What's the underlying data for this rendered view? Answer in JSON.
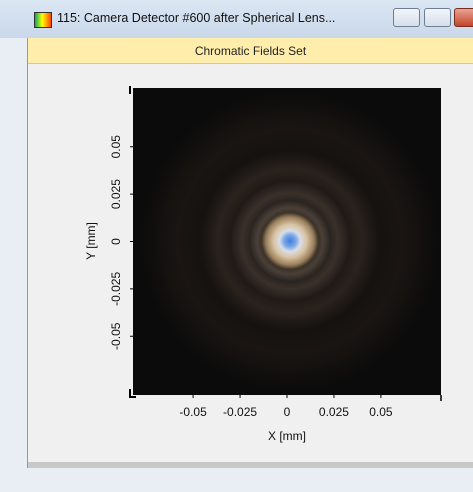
{
  "window": {
    "title": "115: Camera Detector #600 after Spherical Lens..."
  },
  "header": {
    "title": "Chromatic Fields Set"
  },
  "plot": {
    "x_label": "X [mm]",
    "y_label": "Y [mm]",
    "xlim": [
      -0.082,
      0.082
    ],
    "ylim": [
      -0.081,
      0.081
    ],
    "xticks": [
      -0.05,
      -0.025,
      0,
      0.025,
      0.05
    ],
    "yticks": [
      -0.05,
      -0.025,
      0,
      0.025,
      0.05
    ]
  }
}
